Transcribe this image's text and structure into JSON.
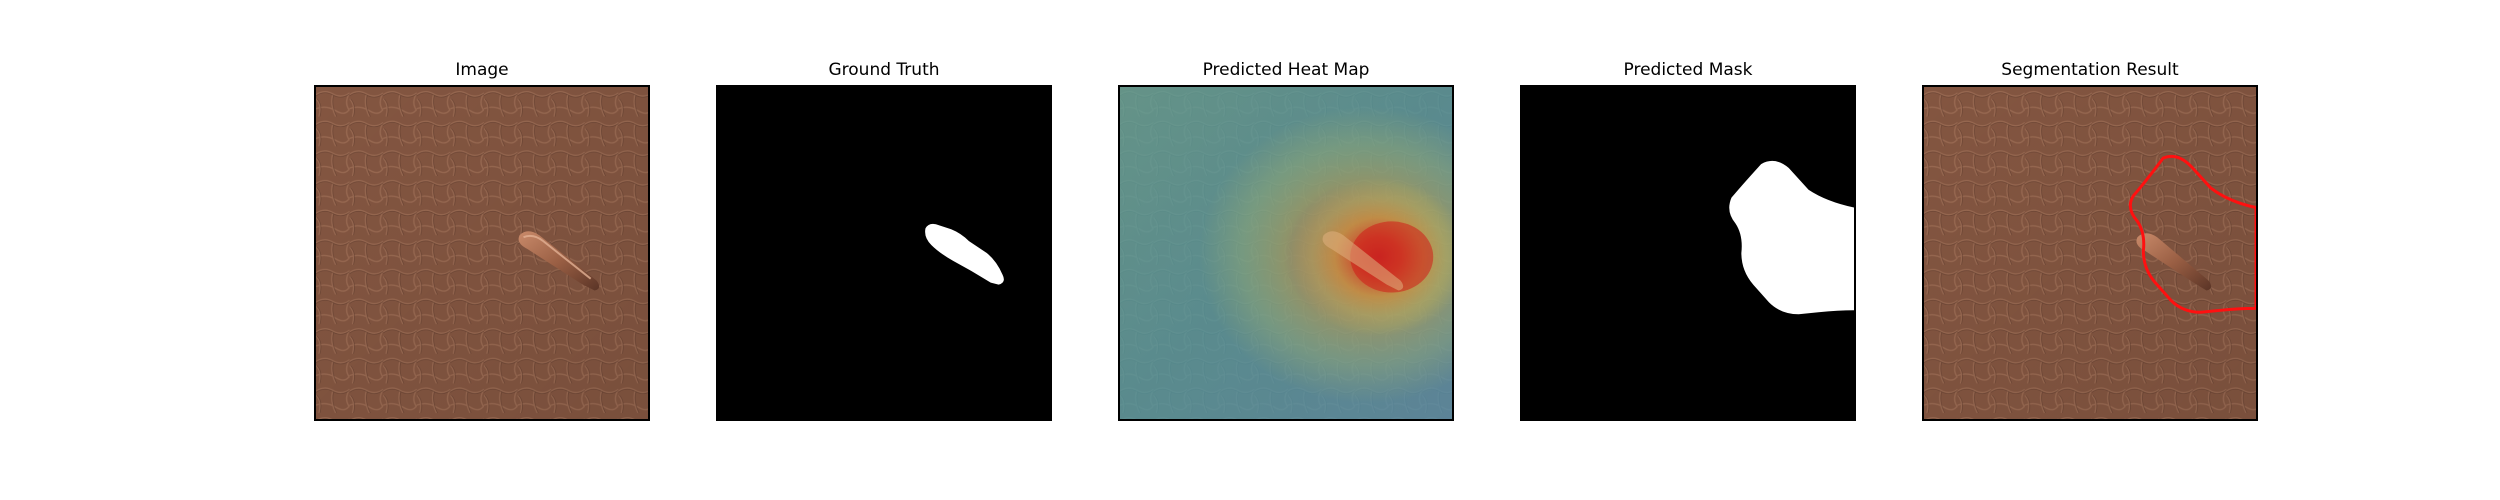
{
  "panels": [
    {
      "title": "Image",
      "content": "leather-texture-with-defect"
    },
    {
      "title": "Ground Truth",
      "content": "binary-mask"
    },
    {
      "title": "Predicted Heat Map",
      "content": "heatmap-overlay"
    },
    {
      "title": "Predicted Mask",
      "content": "binary-mask"
    },
    {
      "title": "Segmentation Result",
      "content": "image-with-contour"
    }
  ],
  "colors": {
    "leather": "#8a5a44",
    "leather_dark": "#6e4433",
    "mask_fg": "#ffffff",
    "mask_bg": "#000000",
    "heat_low": "#4f9ea0",
    "heat_mid": "#c9b23a",
    "heat_high": "#d02a20",
    "contour": "#ff1010"
  }
}
